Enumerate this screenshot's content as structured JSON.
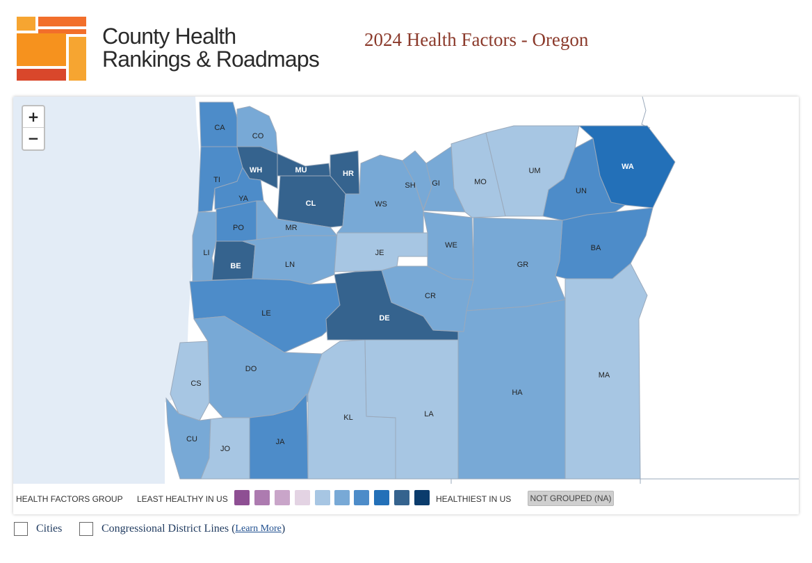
{
  "header": {
    "brand_line1": "County Health",
    "brand_line2": "Rankings & Roadmaps",
    "title": "2024 Health Factors - Oregon"
  },
  "zoom": {
    "in_label": "+",
    "out_label": "−"
  },
  "palette": {
    "g1": "#8e4f93",
    "g2": "#ad7bb0",
    "g3": "#c9a5c9",
    "g4": "#e3d3e3",
    "g5": "#a7c6e3",
    "g6": "#78a9d6",
    "g7": "#4d8cc9",
    "g8": "#2370b8",
    "g9": "#35638e",
    "g10": "#0b3c6c",
    "ocean": "#e3ecf6",
    "border": "#9aa9bb"
  },
  "legend": {
    "group_label": "HEALTH FACTORS GROUP",
    "least_label": "LEAST HEALTHY IN US",
    "healthiest_label": "HEALTHIEST IN US",
    "not_grouped_label": "NOT GROUPED (NA)"
  },
  "counties": [
    {
      "abbr": "CA",
      "group": 7
    },
    {
      "abbr": "CO",
      "group": 6
    },
    {
      "abbr": "TI",
      "group": 7
    },
    {
      "abbr": "WH",
      "group": 9
    },
    {
      "abbr": "MU",
      "group": 9
    },
    {
      "abbr": "HR",
      "group": 9
    },
    {
      "abbr": "CL",
      "group": 9
    },
    {
      "abbr": "YA",
      "group": 7
    },
    {
      "abbr": "PO",
      "group": 7
    },
    {
      "abbr": "MR",
      "group": 6
    },
    {
      "abbr": "LI",
      "group": 6
    },
    {
      "abbr": "BE",
      "group": 9
    },
    {
      "abbr": "LN",
      "group": 6
    },
    {
      "abbr": "LE",
      "group": 7
    },
    {
      "abbr": "DO",
      "group": 6
    },
    {
      "abbr": "CS",
      "group": 5
    },
    {
      "abbr": "CU",
      "group": 6
    },
    {
      "abbr": "JO",
      "group": 5
    },
    {
      "abbr": "JA",
      "group": 7
    },
    {
      "abbr": "KL",
      "group": 5
    },
    {
      "abbr": "DE",
      "group": 9
    },
    {
      "abbr": "LA",
      "group": 5
    },
    {
      "abbr": "WS",
      "group": 6
    },
    {
      "abbr": "SH",
      "group": 6
    },
    {
      "abbr": "GI",
      "group": 6
    },
    {
      "abbr": "JE",
      "group": 5
    },
    {
      "abbr": "WE",
      "group": 6
    },
    {
      "abbr": "CR",
      "group": 6
    },
    {
      "abbr": "MO",
      "group": 5
    },
    {
      "abbr": "UM",
      "group": 5
    },
    {
      "abbr": "UN",
      "group": 7
    },
    {
      "abbr": "WA",
      "group": 8
    },
    {
      "abbr": "BA",
      "group": 7
    },
    {
      "abbr": "GR",
      "group": 6
    },
    {
      "abbr": "HA",
      "group": 6
    },
    {
      "abbr": "MA",
      "group": 5
    }
  ],
  "options": {
    "cities_label": "Cities",
    "districts_label": "Congressional District Lines (",
    "learn_more": "Learn More",
    "districts_close": ")"
  }
}
